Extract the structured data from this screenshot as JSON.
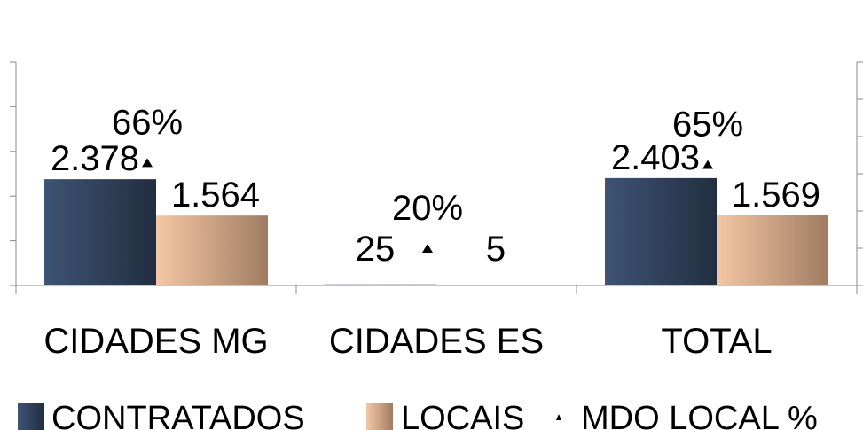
{
  "chart_data": {
    "type": "bar",
    "categories": [
      "CIDADES MG",
      "CIDADES ES",
      "TOTAL"
    ],
    "series": [
      {
        "name": "CONTRATADOS",
        "type": "bar",
        "axis": "left",
        "values": [
          2378,
          25,
          2403
        ],
        "labels": [
          "2.378",
          "25",
          "2.403"
        ],
        "color": "#2e3f58"
      },
      {
        "name": "LOCAIS",
        "type": "bar",
        "axis": "left",
        "values": [
          1564,
          5,
          1569
        ],
        "labels": [
          "1.564",
          "5",
          "1.569"
        ],
        "color": "#d9a985"
      },
      {
        "name": "MDO LOCAL %",
        "type": "marker",
        "axis": "right",
        "values": [
          66,
          20,
          65
        ],
        "labels": [
          "66%",
          "20%",
          "65%"
        ],
        "color": "#000000"
      }
    ],
    "ylim": [
      0,
      5000
    ],
    "y2lim": [
      0,
      120
    ],
    "legend": "bottom",
    "grid": false
  }
}
